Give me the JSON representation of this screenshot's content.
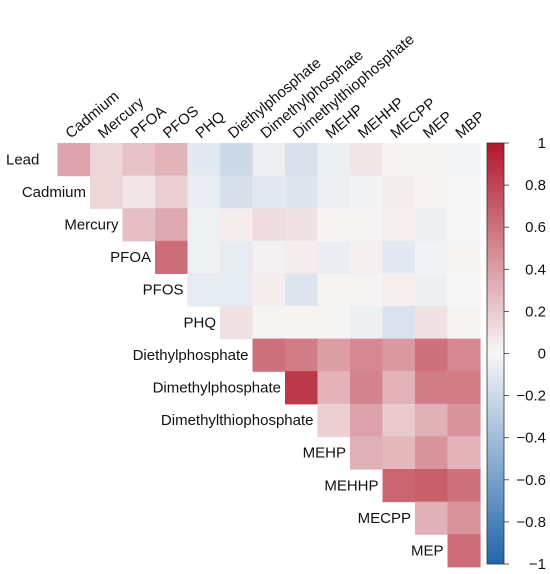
{
  "chart_data": {
    "type": "heatmap",
    "title": "",
    "variables": [
      "Lead",
      "Cadmium",
      "Mercury",
      "PFOA",
      "PFOS",
      "PHQ",
      "Diethylphosphate",
      "Dimethylphosphate",
      "Dimethylthiophosphate",
      "MEHP",
      "MEHHP",
      "MECPP",
      "MEP",
      "MBP"
    ],
    "row_labels": [
      "Lead",
      "Cadmium",
      "Mercury",
      "PFOA",
      "PFOS",
      "PHQ",
      "Diethylphosphate",
      "Dimethylphosphate",
      "Dimethylthiophosphate",
      "MEHP",
      "MEHHP",
      "MECPP",
      "MEP"
    ],
    "column_labels": [
      "Cadmium",
      "Mercury",
      "PFOA",
      "PFOS",
      "PHQ",
      "Diethylphosphate",
      "Dimethylphosphate",
      "Dimethylthiophosphate",
      "MEHP",
      "MEHHP",
      "MECPP",
      "MEP",
      "MBP"
    ],
    "layout": "upper-triangle",
    "matrix": [
      [
        0.37,
        0.15,
        0.24,
        0.3,
        -0.1,
        -0.2,
        -0.05,
        -0.15,
        -0.05,
        0.08,
        0.02,
        0.02,
        -0.02
      ],
      [
        null,
        0.15,
        0.08,
        0.18,
        -0.06,
        -0.16,
        -0.1,
        -0.12,
        -0.05,
        -0.03,
        0.05,
        0.02,
        0.0
      ],
      [
        null,
        null,
        0.25,
        0.35,
        -0.04,
        0.05,
        0.12,
        0.1,
        0.02,
        0.02,
        0.04,
        -0.05,
        0.0
      ],
      [
        null,
        null,
        null,
        0.62,
        -0.04,
        -0.08,
        0.03,
        0.05,
        -0.06,
        0.04,
        -0.1,
        -0.03,
        0.02
      ],
      [
        null,
        null,
        null,
        null,
        -0.08,
        -0.08,
        0.05,
        -0.12,
        0.02,
        0.02,
        0.04,
        -0.05,
        0.0
      ],
      [
        null,
        null,
        null,
        null,
        null,
        0.1,
        0.02,
        0.02,
        0.02,
        -0.05,
        -0.14,
        0.1,
        0.02
      ],
      [
        null,
        null,
        null,
        null,
        null,
        null,
        0.6,
        0.55,
        0.4,
        0.5,
        0.42,
        0.6,
        0.5
      ],
      [
        null,
        null,
        null,
        null,
        null,
        null,
        null,
        0.85,
        0.3,
        0.52,
        0.3,
        0.55,
        0.55
      ],
      [
        null,
        null,
        null,
        null,
        null,
        null,
        null,
        null,
        0.18,
        0.38,
        0.2,
        0.32,
        0.45
      ],
      [
        null,
        null,
        null,
        null,
        null,
        null,
        null,
        null,
        null,
        0.32,
        0.28,
        0.45,
        0.3
      ],
      [
        null,
        null,
        null,
        null,
        null,
        null,
        null,
        null,
        null,
        null,
        0.65,
        0.68,
        0.6
      ],
      [
        null,
        null,
        null,
        null,
        null,
        null,
        null,
        null,
        null,
        null,
        null,
        0.32,
        0.45
      ],
      [
        null,
        null,
        null,
        null,
        null,
        null,
        null,
        null,
        null,
        null,
        null,
        null,
        0.62
      ]
    ],
    "colorbar": {
      "range": [
        -1,
        1
      ],
      "ticks": [
        "1",
        "0.8",
        "0.6",
        "0.4",
        "0.2",
        "0",
        "−0.2",
        "−0.4",
        "−0.6",
        "−0.8",
        "−1"
      ],
      "colors": {
        "negative": "#2166ac",
        "neutral": "#f7f7f7",
        "positive": "#b2182b"
      }
    },
    "legend": "right"
  }
}
